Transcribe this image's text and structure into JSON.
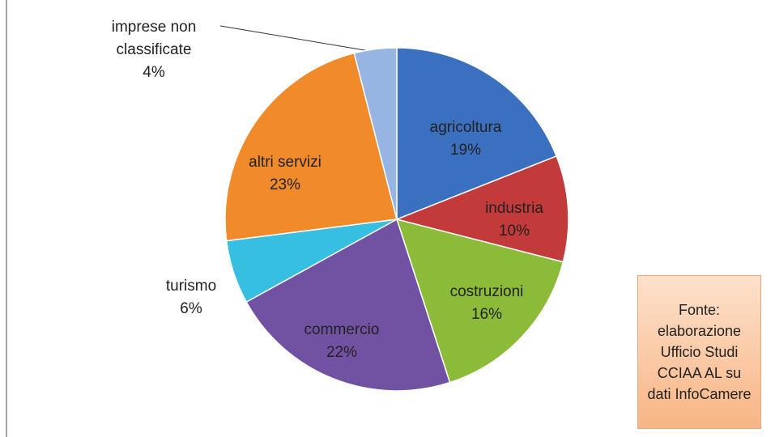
{
  "chart_data": {
    "type": "pie",
    "categories": [
      "agricoltura",
      "industria",
      "costruzioni",
      "commercio",
      "turismo",
      "altri servizi",
      "imprese non classificate"
    ],
    "values": [
      19,
      10,
      16,
      22,
      6,
      23,
      4
    ],
    "value_labels": [
      "19%",
      "10%",
      "16%",
      "22%",
      "6%",
      "23%",
      "4%"
    ],
    "colors": [
      "#3b6fc0",
      "#c23a3a",
      "#8cbb3a",
      "#7152a2",
      "#36bfe0",
      "#f08a2b",
      "#97b5e2"
    ],
    "annotation": "Fonte: elaborazione Ufficio Studi CCIAA AL su dati InfoCamere"
  }
}
